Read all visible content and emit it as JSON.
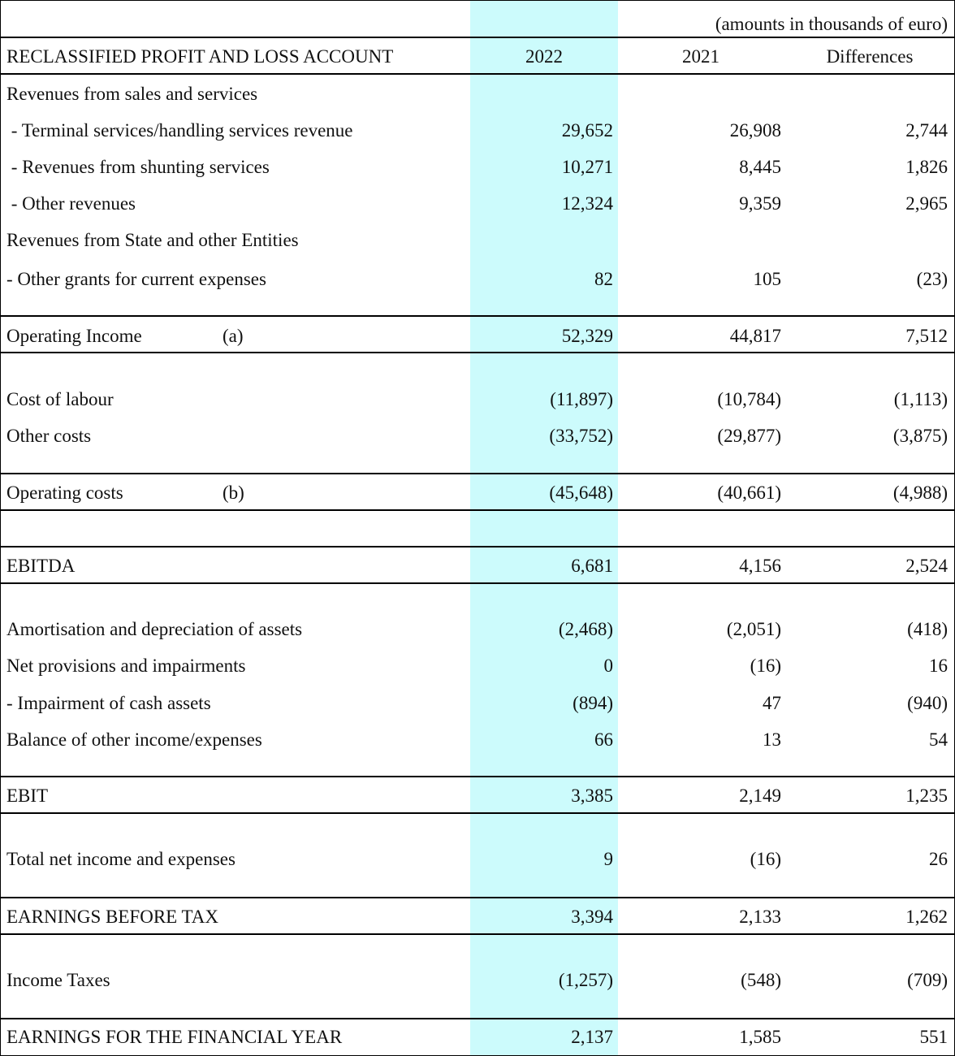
{
  "units_note": "(amounts in thousands of euro)",
  "header": {
    "title": "RECLASSIFIED PROFIT AND LOSS ACCOUNT",
    "col_2022": "2022",
    "col_2021": "2021",
    "col_diff": "Differences"
  },
  "rows": {
    "rev_sales": {
      "label": "Revenues from sales and services"
    },
    "terminal": {
      "label": " - Terminal services/handling services revenue",
      "v2022": "29,652",
      "v2021": "26,908",
      "diff": "2,744"
    },
    "shunting": {
      "label": " - Revenues from shunting services",
      "v2022": "10,271",
      "v2021": "8,445",
      "diff": "1,826"
    },
    "other_rev": {
      "label": " - Other revenues",
      "v2022": "12,324",
      "v2021": "9,359",
      "diff": "2,965"
    },
    "rev_state": {
      "label": "Revenues from State and other Entities"
    },
    "grants": {
      "label": "- Other grants for current expenses",
      "v2022": "82",
      "v2021": "105",
      "diff": "(23)"
    },
    "op_income": {
      "label": "Operating Income",
      "note": "(a)",
      "v2022": "52,329",
      "v2021": "44,817",
      "diff": "7,512"
    },
    "labour": {
      "label": "Cost of labour",
      "v2022": "(11,897)",
      "v2021": "(10,784)",
      "diff": "(1,113)"
    },
    "other_costs": {
      "label": "Other costs",
      "v2022": "(33,752)",
      "v2021": "(29,877)",
      "diff": "(3,875)"
    },
    "op_costs": {
      "label": "Operating costs",
      "note": "(b)",
      "v2022": "(45,648)",
      "v2021": "(40,661)",
      "diff": "(4,988)"
    },
    "ebitda": {
      "label": "EBITDA",
      "v2022": "6,681",
      "v2021": "4,156",
      "diff": "2,524"
    },
    "amort": {
      "label": "Amortisation and depreciation of assets",
      "v2022": "(2,468)",
      "v2021": "(2,051)",
      "diff": "(418)"
    },
    "provisions": {
      "label": "Net provisions and impairments",
      "v2022": "0",
      "v2021": "(16)",
      "diff": "16"
    },
    "impairment_cash": {
      "label": "- Impairment of cash assets",
      "v2022": "(894)",
      "v2021": "47",
      "diff": "(940)"
    },
    "balance_other": {
      "label": "Balance of other income/expenses",
      "v2022": "66",
      "v2021": "13",
      "diff": "54"
    },
    "ebit": {
      "label": "EBIT",
      "v2022": "3,385",
      "v2021": "2,149",
      "diff": "1,235"
    },
    "net_income_exp": {
      "label": "Total net income and expenses",
      "v2022": "9",
      "v2021": "(16)",
      "diff": "26"
    },
    "ebt": {
      "label": "EARNINGS BEFORE TAX",
      "v2022": "3,394",
      "v2021": "2,133",
      "diff": "1,262"
    },
    "taxes": {
      "label": "Income Taxes",
      "v2022": "(1,257)",
      "v2021": "(548)",
      "diff": "(709)"
    },
    "earnings": {
      "label": "EARNINGS FOR THE FINANCIAL YEAR",
      "v2022": "2,137",
      "v2021": "1,585",
      "diff": "551"
    }
  }
}
